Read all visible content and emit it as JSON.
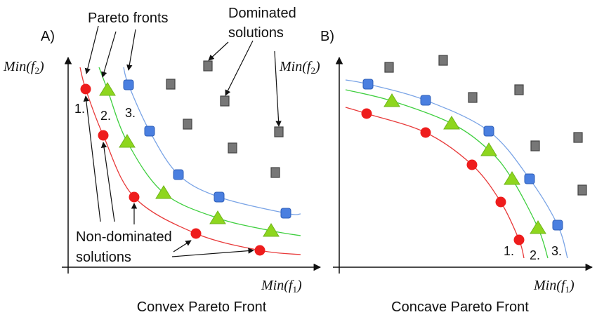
{
  "colors": {
    "front1": "#ee1c1c",
    "front2": "#8ed61e",
    "front3": "#4a7fe0",
    "dominated": "#777777",
    "curve1": "#e83a3a",
    "curve2": "#3fcf3f",
    "curve3": "#7aa4e6"
  },
  "panel_a": {
    "tag": "A)",
    "title": "Convex Pareto Front",
    "y_axis": {
      "label_fn": "Min",
      "label_var": "f",
      "label_sub": "2"
    },
    "x_axis": {
      "label_fn": "Min",
      "label_var": "f",
      "label_sub": "1"
    },
    "front_labels": [
      "1.",
      "2.",
      "3."
    ],
    "annotations": {
      "pareto_fronts": "Pareto fronts",
      "dominated_line1": "Dominated",
      "dominated_line2": "solutions",
      "nondominated_line1": "Non-dominated",
      "nondominated_line2": "solutions"
    }
  },
  "panel_b": {
    "tag": "B)",
    "title": "Concave Pareto Front",
    "y_axis": {
      "label_fn": "Min",
      "label_var": "f",
      "label_sub": "2"
    },
    "x_axis": {
      "label_fn": "Min",
      "label_var": "f",
      "label_sub": "1"
    },
    "front_labels": [
      "1.",
      "2.",
      "3."
    ]
  }
}
